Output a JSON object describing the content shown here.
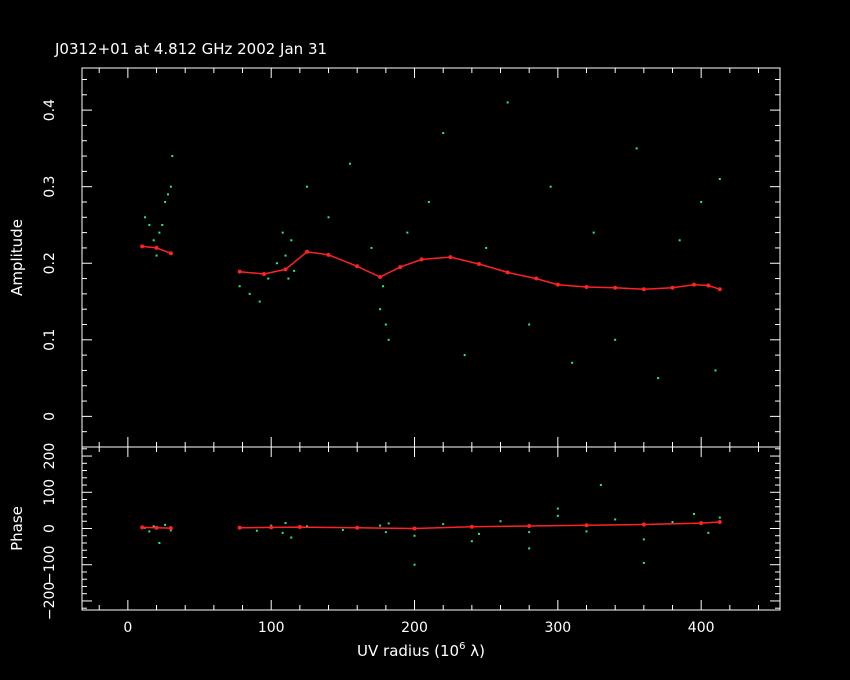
{
  "title": "J0312+01 at 4.812 GHz 2002 Jan 31",
  "colors": {
    "background": "#000000",
    "frame": "#ffffff",
    "data": "#22ee88",
    "model": "#ff2222"
  },
  "chart_data": [
    {
      "type": "scatter",
      "panel": "amplitude",
      "ylabel": "Amplitude",
      "xlim": [
        -32,
        455
      ],
      "ylim": [
        -0.04,
        0.455
      ],
      "yticks": [
        0,
        0.1,
        0.2,
        0.3,
        0.4
      ],
      "ytick_labels": [
        "0",
        "0.1",
        "0.2",
        "0.3",
        "0.4"
      ],
      "series": [
        {
          "role": "data",
          "color": "#22ee88",
          "points": [
            [
              12,
              0.26
            ],
            [
              15,
              0.25
            ],
            [
              18,
              0.23
            ],
            [
              20,
              0.21
            ],
            [
              22,
              0.24
            ],
            [
              24,
              0.25
            ],
            [
              26,
              0.28
            ],
            [
              28,
              0.29
            ],
            [
              30,
              0.3
            ],
            [
              31,
              0.34
            ],
            [
              78,
              0.17
            ],
            [
              85,
              0.16
            ],
            [
              92,
              0.15
            ],
            [
              98,
              0.18
            ],
            [
              104,
              0.2
            ],
            [
              108,
              0.24
            ],
            [
              110,
              0.21
            ],
            [
              112,
              0.18
            ],
            [
              114,
              0.23
            ],
            [
              116,
              0.19
            ],
            [
              125,
              0.3
            ],
            [
              140,
              0.26
            ],
            [
              155,
              0.33
            ],
            [
              170,
              0.22
            ],
            [
              176,
              0.14
            ],
            [
              178,
              0.17
            ],
            [
              180,
              0.12
            ],
            [
              182,
              0.1
            ],
            [
              195,
              0.24
            ],
            [
              210,
              0.28
            ],
            [
              220,
              0.37
            ],
            [
              235,
              0.08
            ],
            [
              250,
              0.22
            ],
            [
              265,
              0.41
            ],
            [
              280,
              0.12
            ],
            [
              295,
              0.3
            ],
            [
              310,
              0.07
            ],
            [
              325,
              0.24
            ],
            [
              340,
              0.1
            ],
            [
              355,
              0.35
            ],
            [
              370,
              0.05
            ],
            [
              385,
              0.23
            ],
            [
              400,
              0.28
            ],
            [
              410,
              0.06
            ],
            [
              413,
              0.31
            ]
          ]
        },
        {
          "role": "model",
          "color": "#ff2222",
          "points": [
            [
              10,
              0.222
            ],
            [
              20,
              0.22
            ],
            [
              30,
              0.213
            ],
            [
              78,
              0.189
            ],
            [
              95,
              0.186
            ],
            [
              110,
              0.192
            ],
            [
              125,
              0.215
            ],
            [
              140,
              0.211
            ],
            [
              160,
              0.196
            ],
            [
              176,
              0.182
            ],
            [
              190,
              0.195
            ],
            [
              205,
              0.205
            ],
            [
              225,
              0.208
            ],
            [
              245,
              0.199
            ],
            [
              265,
              0.188
            ],
            [
              285,
              0.18
            ],
            [
              300,
              0.172
            ],
            [
              320,
              0.169
            ],
            [
              340,
              0.168
            ],
            [
              360,
              0.166
            ],
            [
              380,
              0.168
            ],
            [
              395,
              0.172
            ],
            [
              405,
              0.171
            ],
            [
              413,
              0.166
            ]
          ]
        }
      ]
    },
    {
      "type": "scatter",
      "panel": "phase",
      "xlabel": "UV radius  (10",
      "xlabel_sup": "6",
      "xlabel_unit": " λ)",
      "ylabel": "Phase",
      "xlim": [
        -32,
        455
      ],
      "ylim": [
        -225,
        225
      ],
      "xticks": [
        0,
        100,
        200,
        300,
        400
      ],
      "xtick_labels": [
        "0",
        "100",
        "200",
        "300",
        "400"
      ],
      "yticks": [
        -200,
        -100,
        0,
        100,
        200
      ],
      "ytick_labels": [
        "−200",
        "−100",
        "0",
        "100",
        "200"
      ],
      "series": [
        {
          "role": "data",
          "color": "#22ee88",
          "points": [
            [
              12,
              2
            ],
            [
              15,
              -8
            ],
            [
              18,
              6
            ],
            [
              22,
              -40
            ],
            [
              26,
              10
            ],
            [
              30,
              -5
            ],
            [
              78,
              4
            ],
            [
              90,
              -6
            ],
            [
              100,
              8
            ],
            [
              108,
              -12
            ],
            [
              110,
              15
            ],
            [
              114,
              -25
            ],
            [
              125,
              6
            ],
            [
              150,
              -4
            ],
            [
              176,
              8
            ],
            [
              180,
              -10
            ],
            [
              182,
              14
            ],
            [
              200,
              -20
            ],
            [
              220,
              12
            ],
            [
              245,
              -15
            ],
            [
              260,
              20
            ],
            [
              280,
              -10
            ],
            [
              300,
              35
            ],
            [
              320,
              -8
            ],
            [
              340,
              25
            ],
            [
              360,
              -30
            ],
            [
              380,
              18
            ],
            [
              395,
              40
            ],
            [
              405,
              -12
            ],
            [
              413,
              30
            ],
            [
              280,
              -55
            ],
            [
              330,
              120
            ],
            [
              200,
              -100
            ],
            [
              360,
              -95
            ],
            [
              300,
              55
            ],
            [
              240,
              -35
            ]
          ]
        },
        {
          "role": "model",
          "color": "#ff2222",
          "points": [
            [
              10,
              3
            ],
            [
              20,
              2
            ],
            [
              30,
              1
            ],
            [
              78,
              2
            ],
            [
              100,
              3
            ],
            [
              120,
              4
            ],
            [
              160,
              2
            ],
            [
              200,
              0
            ],
            [
              240,
              5
            ],
            [
              280,
              7
            ],
            [
              320,
              9
            ],
            [
              360,
              11
            ],
            [
              400,
              15
            ],
            [
              413,
              18
            ]
          ]
        }
      ]
    }
  ]
}
